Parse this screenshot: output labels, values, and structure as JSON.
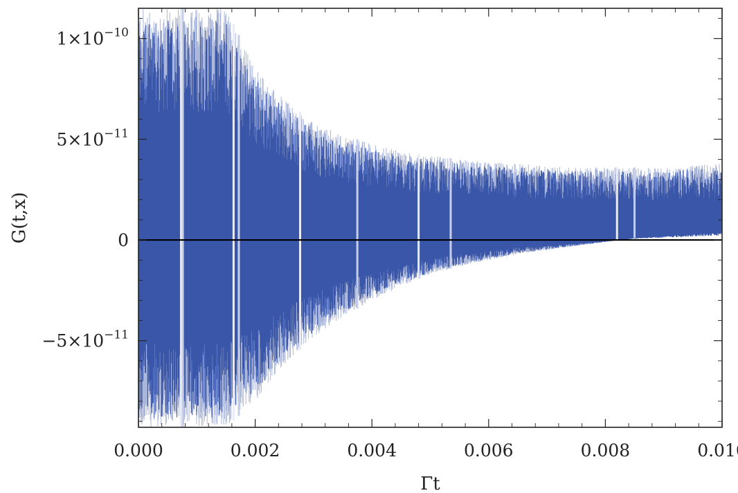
{
  "chart_data": {
    "type": "line",
    "title": "",
    "xlabel": "Γt",
    "ylabel": "G(t,x)",
    "xlim": [
      0.0,
      0.01
    ],
    "ylim": [
      -9.3e-11,
      1.15e-10
    ],
    "x_ticks": [
      0.0,
      0.002,
      0.004,
      0.006,
      0.008,
      0.01
    ],
    "x_tick_labels": [
      "0.000",
      "0.002",
      "0.004",
      "0.006",
      "0.008",
      "0.010"
    ],
    "y_ticks": [
      1e-10,
      5e-11,
      0,
      -5e-11
    ],
    "y_tick_labels": [
      {
        "mantissa": "1×10",
        "exponent": "−10"
      },
      {
        "mantissa": "5×10",
        "exponent": "−11"
      },
      {
        "mantissa": "0",
        "exponent": ""
      },
      {
        "mantissa": "−5×10",
        "exponent": "−11"
      }
    ],
    "zero_line": true,
    "grid": false,
    "line_color": "#3a56a8",
    "line_color_light": "#aab6da",
    "envelope": {
      "x": [
        0.0,
        0.0005,
        0.001,
        0.0015,
        0.002,
        0.0025,
        0.003,
        0.0035,
        0.004,
        0.0045,
        0.005,
        0.0055,
        0.006,
        0.0065,
        0.007,
        0.0075,
        0.008,
        0.0085,
        0.009,
        0.0095,
        0.01
      ],
      "upper": [
        1.15e-10,
        1.15e-10,
        1.15e-10,
        1.15e-10,
        8.5e-11,
        7e-11,
        5.8e-11,
        5.2e-11,
        4.8e-11,
        4.4e-11,
        4.2e-11,
        4e-11,
        3.9e-11,
        3.8e-11,
        3.7e-11,
        3.6e-11,
        3.6e-11,
        3.6e-11,
        3.6e-11,
        3.7e-11,
        3.8e-11
      ],
      "lower": [
        -9.3e-11,
        -9.3e-11,
        -9.3e-11,
        -9.3e-11,
        -8e-11,
        -6.2e-11,
        -4.8e-11,
        -3.8e-11,
        -3e-11,
        -2.3e-11,
        -1.7e-11,
        -1.3e-11,
        -1e-11,
        -7e-12,
        -5e-12,
        -3e-12,
        -1e-12,
        1e-12,
        2e-12,
        3e-12,
        4e-12
      ]
    }
  }
}
